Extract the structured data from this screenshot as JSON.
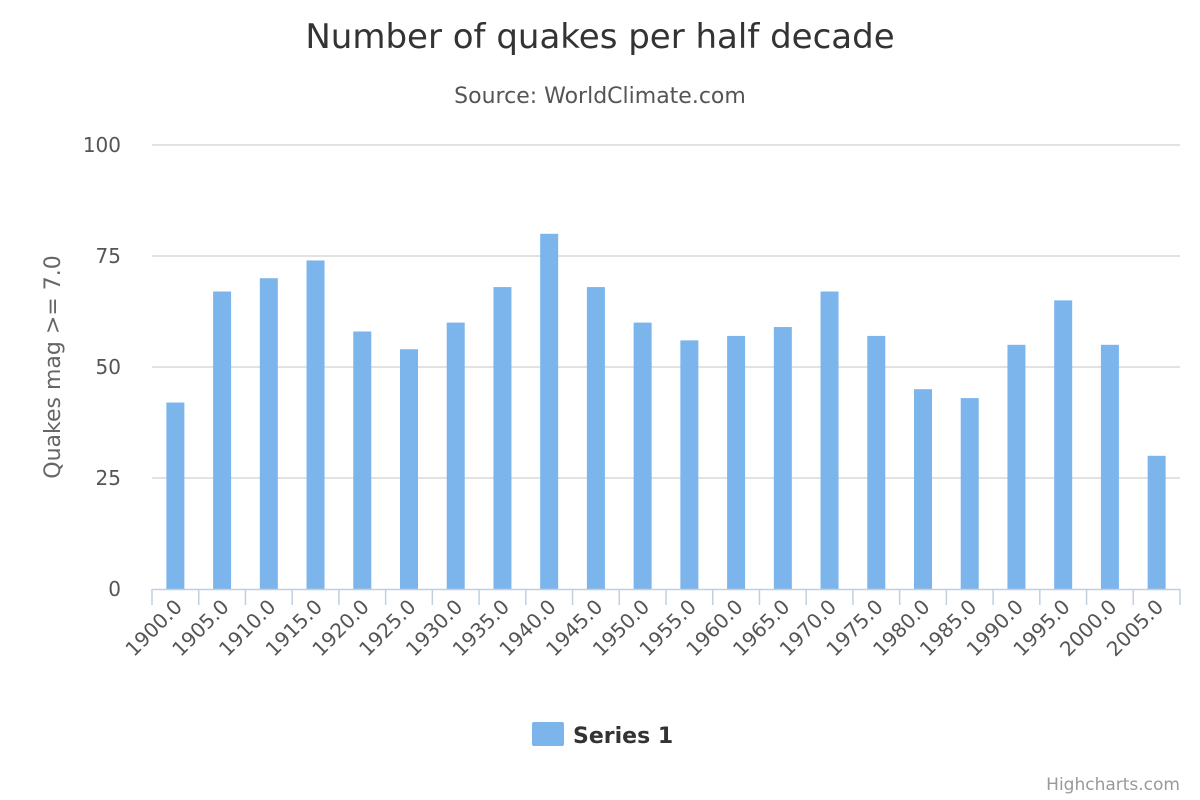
{
  "chart_data": {
    "type": "bar",
    "title": "Number of quakes per half decade",
    "subtitle": "Source: WorldClimate.com",
    "xlabel": "",
    "ylabel": "Quakes mag >= 7.0",
    "ylim": [
      0,
      100
    ],
    "yticks": [
      "0",
      "25",
      "50",
      "75",
      "100"
    ],
    "grid": true,
    "legend_position": "bottom-center",
    "categories": [
      "1900.0",
      "1905.0",
      "1910.0",
      "1915.0",
      "1920.0",
      "1925.0",
      "1930.0",
      "1935.0",
      "1940.0",
      "1945.0",
      "1950.0",
      "1955.0",
      "1960.0",
      "1965.0",
      "1970.0",
      "1975.0",
      "1980.0",
      "1985.0",
      "1990.0",
      "1995.0",
      "2000.0",
      "2005.0"
    ],
    "series": [
      {
        "name": "Series 1",
        "color": "#7cb5ec",
        "values": [
          42,
          67,
          70,
          74,
          58,
          54,
          60,
          68,
          80,
          68,
          60,
          56,
          57,
          59,
          67,
          57,
          45,
          43,
          55,
          65,
          55,
          30
        ]
      }
    ]
  },
  "credits": "Highcharts.com",
  "colors": {
    "grid": "#d8d8d8",
    "axis": "#c0d0e0",
    "bar": "#7cb5ec"
  }
}
